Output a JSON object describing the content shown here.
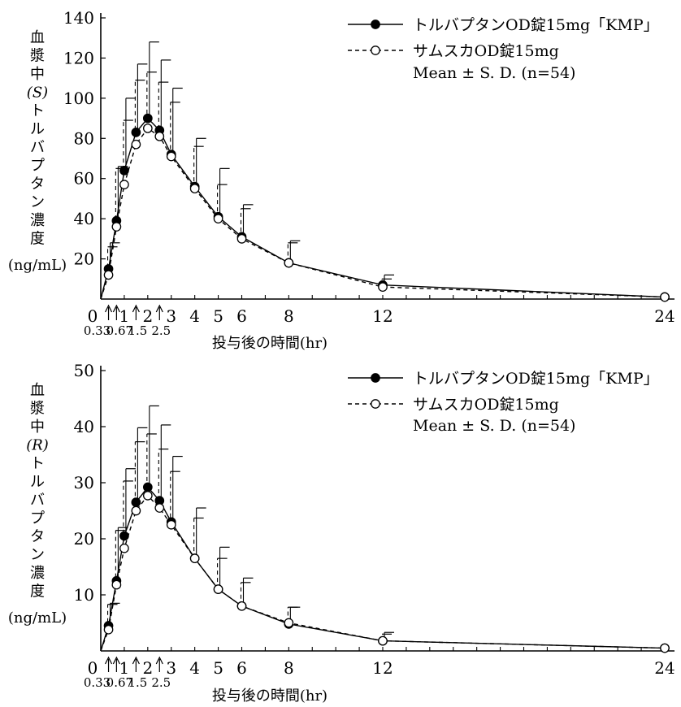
{
  "chart_data": [
    {
      "type": "line",
      "ylabel": [
        "血",
        "漿",
        "中",
        "(S)",
        "ト",
        "ル",
        "バ",
        "プ",
        "タ",
        "ン",
        "濃",
        "度",
        "(ng/mL)"
      ],
      "xlabel": "投与後の時間(hr)",
      "ylim": [
        0,
        140
      ],
      "yticks": [
        "",
        "20",
        "40",
        "60",
        "80",
        "100",
        "120",
        "140"
      ],
      "xlim": [
        0,
        24
      ],
      "xticks_major": [
        "0",
        "1",
        "2",
        "3",
        "4",
        "5",
        "6",
        "8",
        "12",
        "24"
      ],
      "x_arrow_labels": [
        "0.33",
        "0.67",
        "1.5",
        "2.5"
      ],
      "x": [
        0,
        0.33,
        0.67,
        1,
        1.5,
        2,
        2.5,
        3,
        4,
        5,
        6,
        8,
        12,
        24
      ],
      "legend": {
        "entries": [
          "トルバプタンOD錠15mg「KMP」",
          "サムスカOD錠15mg"
        ],
        "note": "Mean ± S. D. (n=54)"
      },
      "series": [
        {
          "name": "トルバプタンOD錠15mg「KMP」",
          "marker": "filled",
          "values": [
            0,
            15,
            39,
            64,
            83,
            90,
            84,
            72,
            56,
            41,
            31,
            18,
            7,
            1
          ],
          "sd": [
            0,
            13,
            27,
            36,
            34,
            38,
            35,
            33,
            24,
            24,
            16,
            11,
            5,
            0
          ]
        },
        {
          "name": "サムスカOD錠15mg",
          "marker": "open",
          "values": [
            0,
            12,
            36,
            57,
            77,
            85,
            81,
            71,
            55,
            40,
            30,
            18,
            6,
            1
          ],
          "sd": [
            0,
            14,
            29,
            32,
            32,
            28,
            27,
            27,
            21,
            17,
            15,
            10,
            4,
            0
          ]
        }
      ]
    },
    {
      "type": "line",
      "ylabel": [
        "血",
        "漿",
        "中",
        "(R)",
        "ト",
        "ル",
        "バ",
        "プ",
        "タ",
        "ン",
        "濃",
        "度",
        "(ng/mL)"
      ],
      "xlabel": "投与後の時間(hr)",
      "ylim": [
        0,
        50
      ],
      "yticks": [
        "",
        "10",
        "20",
        "30",
        "40",
        "50"
      ],
      "xlim": [
        0,
        24
      ],
      "xticks_major": [
        "0",
        "1",
        "2",
        "3",
        "4",
        "5",
        "6",
        "8",
        "12",
        "24"
      ],
      "x_arrow_labels": [
        "0.33",
        "0.67",
        "1.5",
        "2.5"
      ],
      "x": [
        0,
        0.33,
        0.67,
        1,
        1.5,
        2,
        2.5,
        3,
        4,
        5,
        6,
        8,
        12,
        24
      ],
      "legend": {
        "entries": [
          "トルバプタンOD錠15mg「KMP」",
          "サムスカOD錠15mg"
        ],
        "note": "Mean ± S. D. (n=54)"
      },
      "series": [
        {
          "name": "トルバプタンOD錠15mg「KMP」",
          "marker": "filled",
          "values": [
            0,
            4.5,
            12.5,
            20.5,
            26.5,
            29.2,
            26.8,
            23,
            16.5,
            11,
            8,
            4.8,
            1.8,
            0.5
          ],
          "sd": [
            0,
            4,
            9.5,
            12,
            13.3,
            14.5,
            13.5,
            11.7,
            9,
            7.5,
            5,
            3,
            1.5,
            0
          ]
        },
        {
          "name": "サムスカOD錠15mg",
          "marker": "open",
          "values": [
            0,
            3.8,
            11.8,
            18.3,
            25,
            27.7,
            25.5,
            22.5,
            16.5,
            11,
            8,
            5,
            1.8,
            0.5
          ],
          "sd": [
            0,
            4.5,
            9.7,
            12,
            12.3,
            11,
            10.5,
            9.5,
            7.2,
            5.5,
            4.2,
            2.8,
            1.2,
            0
          ]
        }
      ]
    }
  ]
}
